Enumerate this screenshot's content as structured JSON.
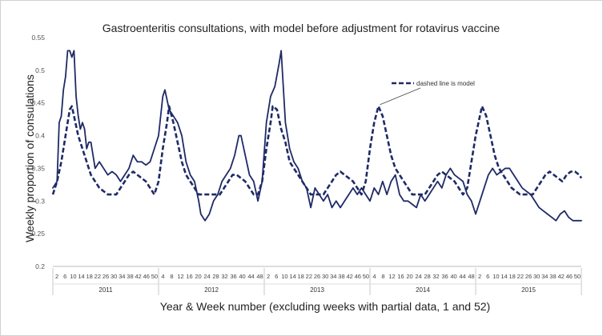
{
  "chart_data": {
    "type": "line",
    "title": "Gastroenteritis consultations, with model before adjustment for rotavirus vaccine",
    "xlabel": "Year & Week number (excluding weeks with partial data, 1 and 52)",
    "ylabel": "Weekly proportion of consulations",
    "ylim": [
      0.2,
      0.55
    ],
    "yticks": [
      "0.2",
      "0.25",
      "0.3",
      "0.35",
      "0.4",
      "0.45",
      "0.5",
      "0.55"
    ],
    "years": [
      "2011",
      "2012",
      "2013",
      "2014",
      "2015"
    ],
    "week_ticks": [
      [
        "2",
        "6",
        "10",
        "14",
        "18",
        "22",
        "26",
        "30",
        "34",
        "38",
        "42",
        "46",
        "50"
      ],
      [
        "4",
        "8",
        "12",
        "16",
        "20",
        "24",
        "28",
        "32",
        "36",
        "40",
        "44",
        "48"
      ],
      [
        "2",
        "6",
        "10",
        "14",
        "18",
        "22",
        "26",
        "30",
        "34",
        "38",
        "42",
        "46",
        "50"
      ],
      [
        "4",
        "8",
        "12",
        "16",
        "20",
        "24",
        "28",
        "32",
        "36",
        "40",
        "44",
        "48"
      ],
      [
        "2",
        "6",
        "10",
        "14",
        "18",
        "22",
        "26",
        "30",
        "34",
        "38",
        "42",
        "46",
        "50"
      ]
    ],
    "annotation": "dashed line is model",
    "grid": false,
    "series": [
      {
        "role": "observed",
        "style": "solid",
        "color": "#1f2a66",
        "points": [
          [
            0,
            0.32
          ],
          [
            2,
            0.33
          ],
          [
            3,
            0.42
          ],
          [
            4,
            0.43
          ],
          [
            5,
            0.47
          ],
          [
            6,
            0.49
          ],
          [
            7,
            0.53
          ],
          [
            8,
            0.53
          ],
          [
            9,
            0.52
          ],
          [
            10,
            0.53
          ],
          [
            11,
            0.46
          ],
          [
            12,
            0.43
          ],
          [
            13,
            0.41
          ],
          [
            14,
            0.42
          ],
          [
            15,
            0.41
          ],
          [
            16,
            0.38
          ],
          [
            17,
            0.39
          ],
          [
            18,
            0.39
          ],
          [
            19,
            0.37
          ],
          [
            20,
            0.35
          ],
          [
            22,
            0.36
          ],
          [
            24,
            0.35
          ],
          [
            26,
            0.34
          ],
          [
            28,
            0.345
          ],
          [
            30,
            0.34
          ],
          [
            32,
            0.33
          ],
          [
            34,
            0.34
          ],
          [
            36,
            0.35
          ],
          [
            38,
            0.37
          ],
          [
            40,
            0.36
          ],
          [
            42,
            0.36
          ],
          [
            44,
            0.355
          ],
          [
            46,
            0.36
          ],
          [
            48,
            0.38
          ],
          [
            50,
            0.4
          ],
          [
            52,
            0.46
          ],
          [
            53,
            0.47
          ],
          [
            55,
            0.44
          ],
          [
            57,
            0.43
          ],
          [
            59,
            0.42
          ],
          [
            61,
            0.4
          ],
          [
            63,
            0.36
          ],
          [
            65,
            0.34
          ],
          [
            67,
            0.33
          ],
          [
            69,
            0.3
          ],
          [
            70,
            0.28
          ],
          [
            71,
            0.275
          ],
          [
            72,
            0.27
          ],
          [
            74,
            0.28
          ],
          [
            76,
            0.3
          ],
          [
            78,
            0.31
          ],
          [
            80,
            0.33
          ],
          [
            82,
            0.34
          ],
          [
            84,
            0.35
          ],
          [
            86,
            0.37
          ],
          [
            88,
            0.4
          ],
          [
            89,
            0.4
          ],
          [
            91,
            0.37
          ],
          [
            93,
            0.34
          ],
          [
            95,
            0.33
          ],
          [
            97,
            0.3
          ],
          [
            99,
            0.33
          ],
          [
            101,
            0.42
          ],
          [
            103,
            0.46
          ],
          [
            105,
            0.475
          ],
          [
            107,
            0.51
          ],
          [
            108,
            0.53
          ],
          [
            110,
            0.42
          ],
          [
            112,
            0.38
          ],
          [
            114,
            0.36
          ],
          [
            116,
            0.35
          ],
          [
            118,
            0.33
          ],
          [
            120,
            0.32
          ],
          [
            122,
            0.29
          ],
          [
            124,
            0.32
          ],
          [
            126,
            0.31
          ],
          [
            128,
            0.3
          ],
          [
            130,
            0.31
          ],
          [
            132,
            0.29
          ],
          [
            134,
            0.3
          ],
          [
            136,
            0.29
          ],
          [
            138,
            0.3
          ],
          [
            140,
            0.31
          ],
          [
            142,
            0.32
          ],
          [
            144,
            0.31
          ],
          [
            146,
            0.32
          ],
          [
            148,
            0.31
          ],
          [
            150,
            0.3
          ],
          [
            152,
            0.32
          ],
          [
            154,
            0.31
          ],
          [
            156,
            0.33
          ],
          [
            158,
            0.31
          ],
          [
            160,
            0.33
          ],
          [
            162,
            0.34
          ],
          [
            164,
            0.31
          ],
          [
            166,
            0.3
          ],
          [
            168,
            0.3
          ],
          [
            170,
            0.295
          ],
          [
            172,
            0.29
          ],
          [
            174,
            0.31
          ],
          [
            176,
            0.3
          ],
          [
            178,
            0.31
          ],
          [
            180,
            0.32
          ],
          [
            182,
            0.33
          ],
          [
            184,
            0.32
          ],
          [
            186,
            0.34
          ],
          [
            188,
            0.35
          ],
          [
            190,
            0.34
          ],
          [
            192,
            0.335
          ],
          [
            194,
            0.33
          ],
          [
            196,
            0.31
          ],
          [
            198,
            0.3
          ],
          [
            200,
            0.28
          ],
          [
            202,
            0.3
          ],
          [
            204,
            0.32
          ],
          [
            206,
            0.34
          ],
          [
            208,
            0.35
          ],
          [
            210,
            0.34
          ],
          [
            212,
            0.345
          ],
          [
            214,
            0.35
          ],
          [
            216,
            0.35
          ],
          [
            218,
            0.34
          ],
          [
            220,
            0.33
          ],
          [
            222,
            0.32
          ],
          [
            224,
            0.315
          ],
          [
            226,
            0.31
          ],
          [
            228,
            0.3
          ],
          [
            230,
            0.29
          ],
          [
            232,
            0.285
          ],
          [
            234,
            0.28
          ],
          [
            236,
            0.275
          ],
          [
            238,
            0.27
          ],
          [
            240,
            0.28
          ],
          [
            242,
            0.285
          ],
          [
            244,
            0.275
          ],
          [
            246,
            0.27
          ],
          [
            248,
            0.27
          ],
          [
            250,
            0.27
          ]
        ]
      },
      {
        "role": "model",
        "style": "dashed",
        "color": "#1f2a66",
        "points": [
          [
            0,
            0.31
          ],
          [
            2,
            0.33
          ],
          [
            4,
            0.36
          ],
          [
            6,
            0.4
          ],
          [
            8,
            0.44
          ],
          [
            9,
            0.445
          ],
          [
            10,
            0.43
          ],
          [
            12,
            0.4
          ],
          [
            14,
            0.38
          ],
          [
            16,
            0.36
          ],
          [
            18,
            0.34
          ],
          [
            20,
            0.33
          ],
          [
            22,
            0.32
          ],
          [
            24,
            0.315
          ],
          [
            26,
            0.31
          ],
          [
            28,
            0.31
          ],
          [
            30,
            0.31
          ],
          [
            32,
            0.32
          ],
          [
            34,
            0.33
          ],
          [
            36,
            0.34
          ],
          [
            38,
            0.345
          ],
          [
            40,
            0.34
          ],
          [
            42,
            0.335
          ],
          [
            44,
            0.33
          ],
          [
            46,
            0.32
          ],
          [
            48,
            0.31
          ],
          [
            50,
            0.33
          ],
          [
            52,
            0.38
          ],
          [
            54,
            0.42
          ],
          [
            55,
            0.445
          ],
          [
            57,
            0.42
          ],
          [
            59,
            0.39
          ],
          [
            61,
            0.36
          ],
          [
            63,
            0.34
          ],
          [
            65,
            0.33
          ],
          [
            67,
            0.32
          ],
          [
            69,
            0.31
          ],
          [
            71,
            0.31
          ],
          [
            73,
            0.31
          ],
          [
            75,
            0.31
          ],
          [
            77,
            0.31
          ],
          [
            79,
            0.31
          ],
          [
            81,
            0.32
          ],
          [
            83,
            0.33
          ],
          [
            85,
            0.34
          ],
          [
            87,
            0.34
          ],
          [
            89,
            0.335
          ],
          [
            91,
            0.33
          ],
          [
            93,
            0.32
          ],
          [
            95,
            0.31
          ],
          [
            97,
            0.31
          ],
          [
            99,
            0.33
          ],
          [
            101,
            0.38
          ],
          [
            103,
            0.42
          ],
          [
            104,
            0.445
          ],
          [
            106,
            0.44
          ],
          [
            108,
            0.41
          ],
          [
            110,
            0.39
          ],
          [
            112,
            0.36
          ],
          [
            114,
            0.35
          ],
          [
            116,
            0.34
          ],
          [
            118,
            0.33
          ],
          [
            120,
            0.32
          ],
          [
            122,
            0.31
          ],
          [
            124,
            0.31
          ],
          [
            126,
            0.31
          ],
          [
            128,
            0.31
          ],
          [
            130,
            0.32
          ],
          [
            132,
            0.33
          ],
          [
            134,
            0.34
          ],
          [
            136,
            0.345
          ],
          [
            138,
            0.34
          ],
          [
            140,
            0.335
          ],
          [
            142,
            0.33
          ],
          [
            144,
            0.32
          ],
          [
            146,
            0.31
          ],
          [
            148,
            0.33
          ],
          [
            150,
            0.38
          ],
          [
            152,
            0.42
          ],
          [
            154,
            0.445
          ],
          [
            156,
            0.43
          ],
          [
            158,
            0.4
          ],
          [
            160,
            0.37
          ],
          [
            162,
            0.35
          ],
          [
            164,
            0.34
          ],
          [
            166,
            0.33
          ],
          [
            168,
            0.32
          ],
          [
            170,
            0.31
          ],
          [
            172,
            0.31
          ],
          [
            174,
            0.31
          ],
          [
            176,
            0.31
          ],
          [
            178,
            0.32
          ],
          [
            180,
            0.33
          ],
          [
            182,
            0.34
          ],
          [
            184,
            0.345
          ],
          [
            186,
            0.34
          ],
          [
            188,
            0.335
          ],
          [
            190,
            0.33
          ],
          [
            192,
            0.32
          ],
          [
            194,
            0.31
          ],
          [
            196,
            0.32
          ],
          [
            198,
            0.36
          ],
          [
            200,
            0.4
          ],
          [
            202,
            0.43
          ],
          [
            203,
            0.445
          ],
          [
            205,
            0.43
          ],
          [
            207,
            0.4
          ],
          [
            209,
            0.37
          ],
          [
            211,
            0.35
          ],
          [
            213,
            0.34
          ],
          [
            215,
            0.33
          ],
          [
            217,
            0.32
          ],
          [
            219,
            0.315
          ],
          [
            221,
            0.31
          ],
          [
            223,
            0.31
          ],
          [
            225,
            0.31
          ],
          [
            227,
            0.31
          ],
          [
            229,
            0.32
          ],
          [
            231,
            0.33
          ],
          [
            233,
            0.34
          ],
          [
            235,
            0.345
          ],
          [
            237,
            0.34
          ],
          [
            239,
            0.335
          ],
          [
            241,
            0.33
          ],
          [
            243,
            0.34
          ],
          [
            245,
            0.345
          ],
          [
            247,
            0.345
          ],
          [
            249,
            0.34
          ],
          [
            250,
            0.335
          ]
        ]
      }
    ]
  }
}
